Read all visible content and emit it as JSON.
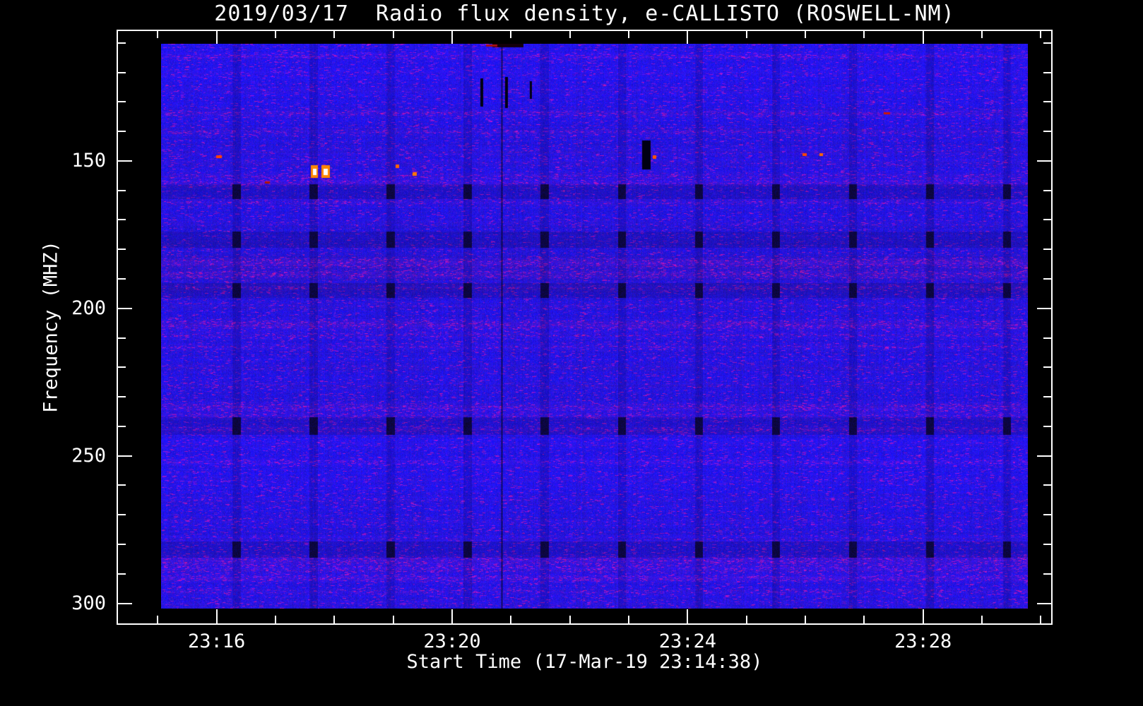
{
  "window": {
    "background": "#000000"
  },
  "chart_data": {
    "type": "heatmap",
    "title": "2019/03/17  Radio flux density, e-CALLISTO (ROSWELL-NM)",
    "xlabel": "Start Time (17-Mar-19 23:14:38)",
    "ylabel": "Frequency (MHZ)",
    "colors": {
      "background": "#000000",
      "axis": "#ffffff",
      "base_blue": "#2a23d8"
    },
    "frame_time_range": [
      14.3,
      30.2
    ],
    "frame_freq_range": [
      105.5,
      307.3
    ],
    "image_time_range": [
      15.06,
      29.78
    ],
    "image_freq_range": [
      110.3,
      301.8
    ],
    "x_ticks": [
      {
        "minute": 16,
        "label": "23:16"
      },
      {
        "minute": 20,
        "label": "23:20"
      },
      {
        "minute": 24,
        "label": "23:24"
      },
      {
        "minute": 28,
        "label": "23:28"
      }
    ],
    "x_minor_ticks": [
      15,
      17,
      18,
      19,
      21,
      22,
      23,
      25,
      26,
      27,
      29,
      30
    ],
    "y_ticks": [
      {
        "value": 150,
        "label": "150"
      },
      {
        "value": 200,
        "label": "200"
      },
      {
        "value": 250,
        "label": "250"
      },
      {
        "value": 300,
        "label": "300"
      }
    ],
    "y_minor_ticks": [
      110,
      120,
      130,
      140,
      160,
      170,
      180,
      190,
      210,
      220,
      230,
      240,
      260,
      270,
      280,
      290
    ],
    "dark_line_time": 20.84,
    "calibration": {
      "first_time": 16.27,
      "period": 1.308,
      "width": 0.14,
      "dark_rows": [
        [
          158,
          163
        ],
        [
          174,
          179.5
        ],
        [
          191.5,
          196.5
        ],
        [
          237,
          243
        ],
        [
          279,
          284.5
        ]
      ]
    },
    "rfi_stripes": [
      {
        "f": 114.5,
        "i": 14
      },
      {
        "f": 120,
        "i": 8
      },
      {
        "f": 126,
        "i": 10
      },
      {
        "f": 133.8,
        "i": 16
      },
      {
        "f": 140,
        "i": 12
      },
      {
        "f": 147,
        "i": 10
      },
      {
        "f": 150.5,
        "i": 10
      },
      {
        "f": 155,
        "i": 14
      },
      {
        "f": 157.5,
        "i": 18
      },
      {
        "f": 164,
        "i": 12
      },
      {
        "f": 171,
        "i": 8
      },
      {
        "f": 184.5,
        "i": 26,
        "w": 1.6
      },
      {
        "f": 188.5,
        "i": 22,
        "w": 1.4
      },
      {
        "f": 193,
        "i": 12
      },
      {
        "f": 199,
        "i": 8
      },
      {
        "f": 205.5,
        "i": 24,
        "w": 1.5
      },
      {
        "f": 209,
        "i": 12
      },
      {
        "f": 213,
        "i": 12
      },
      {
        "f": 220,
        "i": 8
      },
      {
        "f": 226,
        "i": 8
      },
      {
        "f": 233.5,
        "i": 20,
        "w": 1.5
      },
      {
        "f": 236.5,
        "i": 14
      },
      {
        "f": 241,
        "i": 16
      },
      {
        "f": 246,
        "i": 8
      },
      {
        "f": 252,
        "i": 14
      },
      {
        "f": 258,
        "i": 8
      },
      {
        "f": 265,
        "i": 8
      },
      {
        "f": 272,
        "i": 8
      },
      {
        "f": 278,
        "i": 10
      },
      {
        "f": 285.5,
        "i": 22,
        "w": 1.6
      },
      {
        "f": 288.5,
        "i": 18
      },
      {
        "f": 291.5,
        "i": 24
      },
      {
        "f": 296,
        "i": 12
      },
      {
        "f": 300,
        "i": 10
      }
    ],
    "bright_spots": [
      {
        "t": 16.04,
        "f": 148.6,
        "w": 8,
        "h": 4,
        "color": "#ff4400"
      },
      {
        "t": 16.86,
        "f": 157.2,
        "w": 7,
        "h": 3,
        "color": "#aa1800"
      },
      {
        "t": 17.66,
        "f": 153.6,
        "w": 5,
        "h": 9,
        "color": "#ffffff",
        "halo": "#ff8800"
      },
      {
        "t": 17.86,
        "f": 153.6,
        "w": 6,
        "h": 9,
        "color": "#ffffff",
        "halo": "#ff8800"
      },
      {
        "t": 19.07,
        "f": 151.8,
        "w": 5,
        "h": 5,
        "color": "#ff6600"
      },
      {
        "t": 19.37,
        "f": 154.3,
        "w": 6,
        "h": 5,
        "color": "#ff7700"
      },
      {
        "t": 20.68,
        "f": 110.8,
        "w": 16,
        "h": 3,
        "color": "#aa1010"
      },
      {
        "t": 23.43,
        "f": 148.6,
        "w": 5,
        "h": 5,
        "color": "#ff5500"
      },
      {
        "t": 25.99,
        "f": 147.8,
        "w": 6,
        "h": 4,
        "color": "#ff4400"
      },
      {
        "t": 26.26,
        "f": 147.8,
        "w": 5,
        "h": 4,
        "color": "#ff6600"
      },
      {
        "t": 27.38,
        "f": 133.8,
        "w": 9,
        "h": 3,
        "color": "#cc1800"
      }
    ],
    "dark_marks": [
      {
        "t": 20.51,
        "f1": 122,
        "f2": 131.5,
        "w": 4
      },
      {
        "t": 20.93,
        "f1": 121.5,
        "f2": 132,
        "w": 4
      },
      {
        "t": 21.34,
        "f1": 123,
        "f2": 129,
        "w": 3
      },
      {
        "t": 23.3,
        "f1": 143,
        "f2": 153,
        "w": 12
      },
      {
        "t": 20.95,
        "f1": 110.3,
        "f2": 111.5,
        "w": 44,
        "color": "#14000a"
      }
    ]
  }
}
